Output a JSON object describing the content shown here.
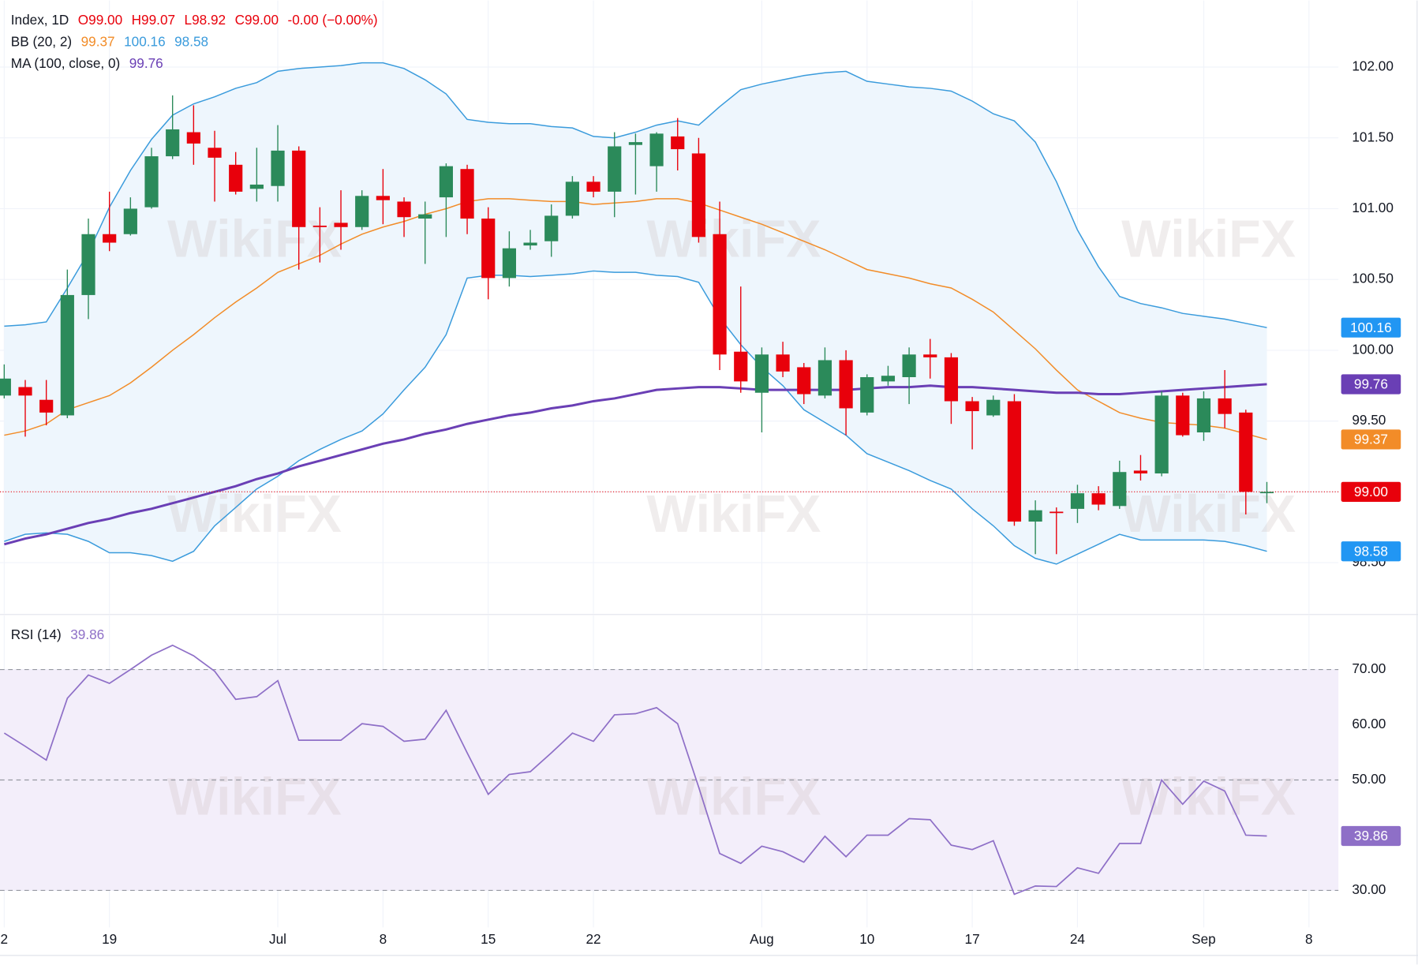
{
  "watermark": "WikiFX",
  "chart_data": [
    {
      "type": "candlestick",
      "header": {
        "symbol": "Index, 1D",
        "open": "O99.00",
        "high": "H99.07",
        "low": "L98.92",
        "close": "C99.00",
        "change": "-0.00 (−0.00%)"
      },
      "up_color": "#2b8a5a",
      "down_color": "#e8000b",
      "last_color": "#e8000b",
      "open": [
        99.68,
        99.74,
        99.65,
        99.54,
        100.39,
        100.82,
        100.82,
        101.01,
        101.37,
        101.54,
        101.43,
        101.31,
        101.14,
        101.16,
        101.41,
        100.88,
        100.9,
        100.87,
        101.09,
        101.05,
        100.93,
        101.08,
        101.28,
        100.93,
        100.51,
        100.74,
        100.77,
        100.95,
        101.19,
        101.12,
        101.45,
        101.3,
        101.51,
        101.39,
        100.82,
        99.99,
        99.7,
        99.97,
        99.88,
        99.68,
        99.93,
        99.56,
        99.78,
        99.81,
        99.97,
        99.95,
        99.64,
        99.54,
        99.64,
        98.79,
        98.86,
        98.88,
        98.99,
        98.9,
        99.15,
        99.13,
        99.68,
        99.42,
        99.66,
        99.56,
        99.0
      ],
      "high": [
        99.9,
        99.79,
        99.79,
        100.57,
        100.93,
        101.12,
        101.08,
        101.43,
        101.8,
        101.73,
        101.55,
        101.4,
        101.43,
        101.59,
        101.44,
        101.01,
        101.13,
        101.13,
        101.28,
        101.08,
        101.05,
        101.32,
        101.31,
        101.01,
        100.84,
        100.85,
        101.03,
        101.23,
        101.23,
        101.54,
        101.53,
        101.54,
        101.64,
        101.5,
        101.05,
        100.45,
        100.02,
        100.06,
        99.91,
        100.02,
        100.0,
        99.83,
        99.89,
        100.02,
        100.08,
        99.98,
        99.67,
        99.68,
        99.69,
        98.94,
        98.89,
        99.05,
        99.04,
        99.22,
        99.26,
        99.71,
        99.7,
        99.71,
        99.86,
        99.58,
        99.07
      ],
      "low": [
        99.66,
        99.39,
        99.47,
        99.52,
        100.22,
        100.7,
        100.81,
        101.0,
        101.35,
        101.31,
        101.05,
        101.1,
        101.05,
        101.05,
        100.57,
        100.62,
        100.71,
        100.85,
        100.89,
        100.8,
        100.61,
        100.8,
        100.82,
        100.36,
        100.45,
        100.71,
        100.66,
        100.93,
        101.08,
        100.94,
        101.1,
        101.12,
        101.27,
        100.76,
        99.86,
        99.7,
        99.42,
        99.81,
        99.62,
        99.66,
        99.4,
        99.54,
        99.75,
        99.62,
        99.8,
        99.48,
        99.3,
        99.53,
        98.76,
        98.56,
        98.56,
        98.78,
        98.87,
        98.88,
        99.08,
        99.11,
        99.39,
        99.36,
        99.45,
        98.84,
        98.92
      ],
      "close": [
        99.8,
        99.68,
        99.56,
        100.39,
        100.82,
        100.76,
        101.0,
        101.37,
        101.56,
        101.46,
        101.36,
        101.12,
        101.17,
        101.41,
        100.87,
        100.87,
        100.87,
        101.09,
        101.06,
        100.94,
        100.96,
        101.3,
        100.93,
        100.51,
        100.72,
        100.76,
        100.95,
        101.19,
        101.12,
        101.44,
        101.47,
        101.53,
        101.42,
        100.8,
        99.97,
        99.78,
        99.97,
        99.85,
        99.69,
        99.93,
        99.59,
        99.81,
        99.82,
        99.97,
        99.95,
        99.64,
        99.57,
        99.65,
        98.79,
        98.87,
        98.85,
        98.99,
        98.91,
        99.14,
        99.13,
        99.68,
        99.4,
        99.66,
        99.55,
        99.0,
        99.0
      ],
      "last_label": "99.00",
      "bb": {
        "name": "BB (20, 2)",
        "fill": "#eef6fd",
        "basis": {
          "color": "#f28c28",
          "last_label": "99.37",
          "values": [
            99.4,
            99.43,
            99.48,
            99.58,
            99.63,
            99.68,
            99.77,
            99.88,
            100.0,
            100.11,
            100.23,
            100.34,
            100.44,
            100.55,
            100.61,
            100.67,
            100.75,
            100.82,
            100.87,
            100.91,
            100.96,
            101.0,
            101.05,
            101.07,
            101.07,
            101.06,
            101.05,
            101.05,
            101.03,
            101.04,
            101.05,
            101.07,
            101.07,
            101.04,
            100.99,
            100.94,
            100.89,
            100.83,
            100.77,
            100.71,
            100.64,
            100.57,
            100.54,
            100.51,
            100.47,
            100.44,
            100.36,
            100.27,
            100.14,
            100.01,
            99.86,
            99.72,
            99.64,
            99.56,
            99.52,
            99.49,
            99.48,
            99.47,
            99.45,
            99.41,
            99.37
          ]
        },
        "upper": {
          "color": "#3a9bdc",
          "last_label": "100.16",
          "values": [
            100.17,
            100.18,
            100.2,
            100.44,
            100.69,
            101.01,
            101.27,
            101.49,
            101.66,
            101.74,
            101.79,
            101.85,
            101.89,
            101.97,
            101.99,
            102.0,
            102.01,
            102.03,
            102.03,
            101.99,
            101.91,
            101.81,
            101.63,
            101.61,
            101.6,
            101.6,
            101.58,
            101.57,
            101.51,
            101.5,
            101.54,
            101.59,
            101.62,
            101.59,
            101.72,
            101.84,
            101.88,
            101.91,
            101.94,
            101.96,
            101.97,
            101.9,
            101.88,
            101.86,
            101.85,
            101.83,
            101.76,
            101.67,
            101.62,
            101.47,
            101.19,
            100.85,
            100.59,
            100.38,
            100.33,
            100.3,
            100.26,
            100.24,
            100.22,
            100.19,
            100.16
          ]
        },
        "lower": {
          "color": "#3a9bdc",
          "last_label": "98.58",
          "values": [
            98.65,
            98.7,
            98.71,
            98.7,
            98.65,
            98.57,
            98.57,
            98.55,
            98.51,
            98.58,
            98.76,
            98.89,
            99.02,
            99.11,
            99.22,
            99.3,
            99.37,
            99.43,
            99.55,
            99.72,
            99.88,
            100.11,
            100.51,
            100.53,
            100.53,
            100.52,
            100.53,
            100.54,
            100.56,
            100.55,
            100.55,
            100.53,
            100.52,
            100.48,
            100.23,
            100.04,
            99.88,
            99.75,
            99.58,
            99.49,
            99.4,
            99.27,
            99.21,
            99.15,
            99.08,
            99.02,
            98.88,
            98.76,
            98.62,
            98.53,
            98.49,
            98.56,
            98.63,
            98.7,
            98.66,
            98.66,
            98.66,
            98.66,
            98.65,
            98.62,
            98.58
          ]
        }
      },
      "ma": {
        "name": "MA (100, close, 0)",
        "color": "#6a3fb5",
        "last_label": "99.76",
        "values": [
          98.63,
          98.67,
          98.7,
          98.74,
          98.78,
          98.81,
          98.85,
          98.88,
          98.92,
          98.96,
          99.0,
          99.04,
          99.09,
          99.13,
          99.18,
          99.22,
          99.26,
          99.3,
          99.34,
          99.37,
          99.41,
          99.44,
          99.48,
          99.51,
          99.54,
          99.56,
          99.59,
          99.61,
          99.64,
          99.66,
          99.69,
          99.72,
          99.73,
          99.74,
          99.74,
          99.73,
          99.72,
          99.72,
          99.72,
          99.72,
          99.72,
          99.73,
          99.74,
          99.74,
          99.75,
          99.74,
          99.74,
          99.73,
          99.72,
          99.71,
          99.7,
          99.7,
          99.69,
          99.69,
          99.7,
          99.71,
          99.72,
          99.73,
          99.74,
          99.75,
          99.76
        ]
      },
      "ylim": [
        98.14,
        102.47
      ],
      "yticks": [
        {
          "value": 98.5,
          "label": "98.50"
        },
        {
          "value": 99,
          "label": "99.00"
        },
        {
          "value": 99.5,
          "label": "99.50"
        },
        {
          "value": 100,
          "label": "100.00"
        },
        {
          "value": 100.5,
          "label": "100.50"
        },
        {
          "value": 101,
          "label": "101.00"
        },
        {
          "value": 101.5,
          "label": "101.50"
        },
        {
          "value": 102,
          "label": "102.00"
        }
      ],
      "xlim": [
        -0.2,
        63.4
      ],
      "xticks": [
        {
          "value": 0,
          "label": "2"
        },
        {
          "value": 5,
          "label": "19"
        },
        {
          "value": 13,
          "label": "Jul"
        },
        {
          "value": 18,
          "label": "8"
        },
        {
          "value": 23,
          "label": "15"
        },
        {
          "value": 28,
          "label": "22"
        },
        {
          "value": 36,
          "label": "Aug"
        },
        {
          "value": 41,
          "label": "10"
        },
        {
          "value": 46,
          "label": "17"
        },
        {
          "value": 51,
          "label": "24"
        },
        {
          "value": 57,
          "label": "Sep"
        },
        {
          "value": 62,
          "label": "8"
        }
      ],
      "grid": true
    },
    {
      "type": "line",
      "name": "RSI (14)",
      "color": "#8e6fc7",
      "band_fill": "#f3eefa",
      "last_label": "39.86",
      "values": [
        58.5,
        56.1,
        53.6,
        64.8,
        69.0,
        67.5,
        70.0,
        72.6,
        74.4,
        72.5,
        69.7,
        64.6,
        65.1,
        68.0,
        57.2,
        57.2,
        57.2,
        60.2,
        59.7,
        57.0,
        57.4,
        62.6,
        54.9,
        47.4,
        51.0,
        51.5,
        54.9,
        58.5,
        57.0,
        61.8,
        62.0,
        63.1,
        60.2,
        48.7,
        36.7,
        34.9,
        38.0,
        37.0,
        35.1,
        39.8,
        36.1,
        40.0,
        40.0,
        43.0,
        42.8,
        38.2,
        37.4,
        39.0,
        29.3,
        30.8,
        30.7,
        34.1,
        33.1,
        38.5,
        38.5,
        50.0,
        45.6,
        49.8,
        48.0,
        40.0,
        39.86
      ],
      "bands": [
        70,
        50,
        30
      ],
      "ylim": [
        23.3,
        79.8
      ],
      "yticks": [
        {
          "value": 30,
          "label": "30.00"
        },
        {
          "value": 50,
          "label": "50.00"
        },
        {
          "value": 60,
          "label": "60.00"
        },
        {
          "value": 70,
          "label": "70.00"
        }
      ]
    }
  ]
}
